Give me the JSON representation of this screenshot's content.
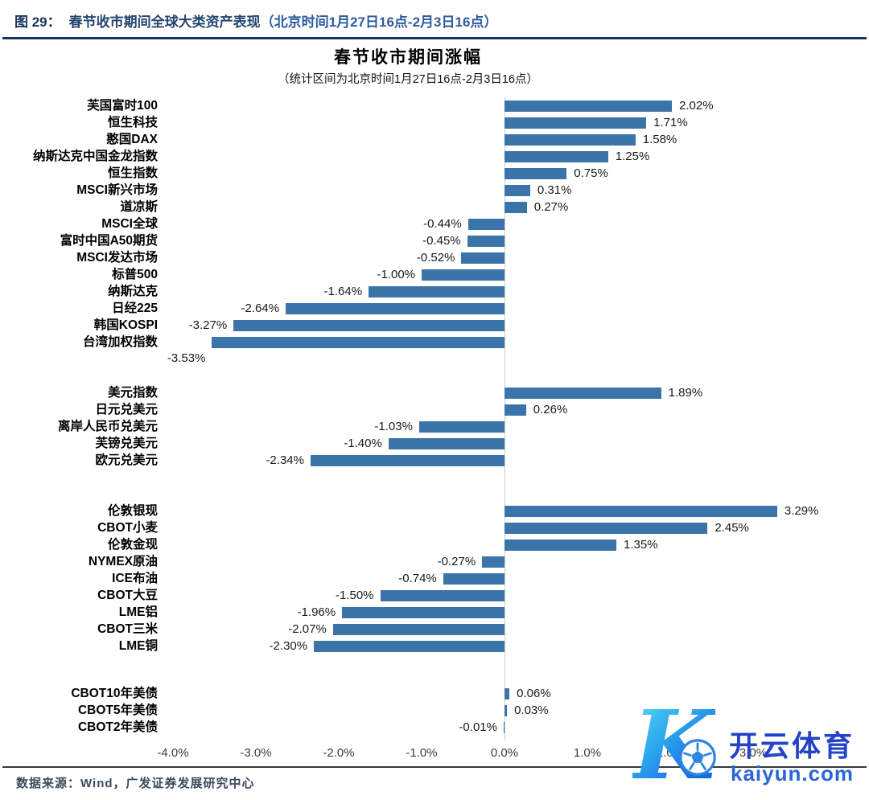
{
  "header": {
    "label": "图  29：",
    "title_main": "春节收市期间全球大类资产表现",
    "title_paren": "（北京时间1月27日16点-2月3日16点）"
  },
  "footer": {
    "source_note": "数据来源：Wind，广发证券发展研究中心"
  },
  "watermark": {
    "letter": "K",
    "brand_cn": "开云体育",
    "brand_url": "kaiyun.com"
  },
  "chart_data": {
    "type": "bar",
    "orientation": "horizontal",
    "title": "春节收市期间涨幅",
    "subtitle": "（统计区间为北京时间1月27日16点-2月3日16点）",
    "bar_color": "#3B74A9",
    "value_unit": "%",
    "xlim": [
      -4.5,
      4.2
    ],
    "grid": "zero-axis-only",
    "legend": "none",
    "x_ticks": [
      {
        "label": "-4.0%",
        "value": -4
      },
      {
        "label": "-3.0%",
        "value": -3
      },
      {
        "label": "-2.0%",
        "value": -2
      },
      {
        "label": "-1.0%",
        "value": -1
      },
      {
        "label": "0.0%",
        "value": 0
      },
      {
        "label": "1.0%",
        "value": 1
      },
      {
        "label": "2.0%",
        "value": 2
      },
      {
        "label": "3.0%",
        "value": 3
      }
    ],
    "groups": [
      {
        "items": [
          {
            "label": "芙国富时100",
            "value": 2.02,
            "display": "2.02%"
          },
          {
            "label": "恒生科技",
            "value": 1.71,
            "display": "1.71%"
          },
          {
            "label": "憨国DAX",
            "value": 1.58,
            "display": "1.58%"
          },
          {
            "label": "纳斯达克中国金龙指数",
            "value": 1.25,
            "display": "1.25%"
          },
          {
            "label": "恒生指数",
            "value": 0.75,
            "display": "0.75%"
          },
          {
            "label": "MSCI新兴市场",
            "value": 0.31,
            "display": "0.31%"
          },
          {
            "label": "道凉斯",
            "value": 0.27,
            "display": "0.27%"
          },
          {
            "label": "MSCI全球",
            "value": -0.44,
            "display": "-0.44%"
          },
          {
            "label": "富时中国A50期货",
            "value": -0.45,
            "display": "-0.45%"
          },
          {
            "label": "MSCI发达市场",
            "value": -0.52,
            "display": "-0.52%"
          },
          {
            "label": "标普500",
            "value": -1.0,
            "display": "-1.00%"
          },
          {
            "label": "纳斯达克",
            "value": -1.64,
            "display": "-1.64%"
          },
          {
            "label": "日经225",
            "value": -2.64,
            "display": "-2.64%"
          },
          {
            "label": "韩国KOSPI",
            "value": -3.27,
            "display": "-3.27%"
          },
          {
            "label": "台湾加权指数",
            "value": -3.53,
            "display": "-3.53%",
            "value_label_below": true
          }
        ]
      },
      {
        "items": [
          {
            "label": "美元指数",
            "value": 1.89,
            "display": "1.89%"
          },
          {
            "label": "日元兑美元",
            "value": 0.26,
            "display": "0.26%"
          },
          {
            "label": "离岸人民币兑美元",
            "value": -1.03,
            "display": "-1.03%"
          },
          {
            "label": "芙镑兑美元",
            "value": -1.4,
            "display": "-1.40%"
          },
          {
            "label": "欧元兑美元",
            "value": -2.34,
            "display": "-2.34%"
          }
        ]
      },
      {
        "items": [
          {
            "label": "伦敦银现",
            "value": 3.29,
            "display": "3.29%"
          },
          {
            "label": "CBOT小麦",
            "value": 2.45,
            "display": "2.45%"
          },
          {
            "label": "伦敦金现",
            "value": 1.35,
            "display": "1.35%"
          },
          {
            "label": "NYMEX原油",
            "value": -0.27,
            "display": "-0.27%"
          },
          {
            "label": "ICE布油",
            "value": -0.74,
            "display": "-0.74%"
          },
          {
            "label": "CBOT大豆",
            "value": -1.5,
            "display": "-1.50%"
          },
          {
            "label": "LME铝",
            "value": -1.96,
            "display": "-1.96%"
          },
          {
            "label": "CBOT三米",
            "value": -2.07,
            "display": "-2.07%"
          },
          {
            "label": "LME铜",
            "value": -2.3,
            "display": "-2.30%"
          }
        ]
      },
      {
        "items": [
          {
            "label": "CBOT10年美债",
            "value": 0.06,
            "display": "0.06%"
          },
          {
            "label": "CBOT5年美债",
            "value": 0.03,
            "display": "0.03%"
          },
          {
            "label": "CBOT2年美债",
            "value": -0.01,
            "display": "-0.01%"
          }
        ]
      }
    ]
  }
}
